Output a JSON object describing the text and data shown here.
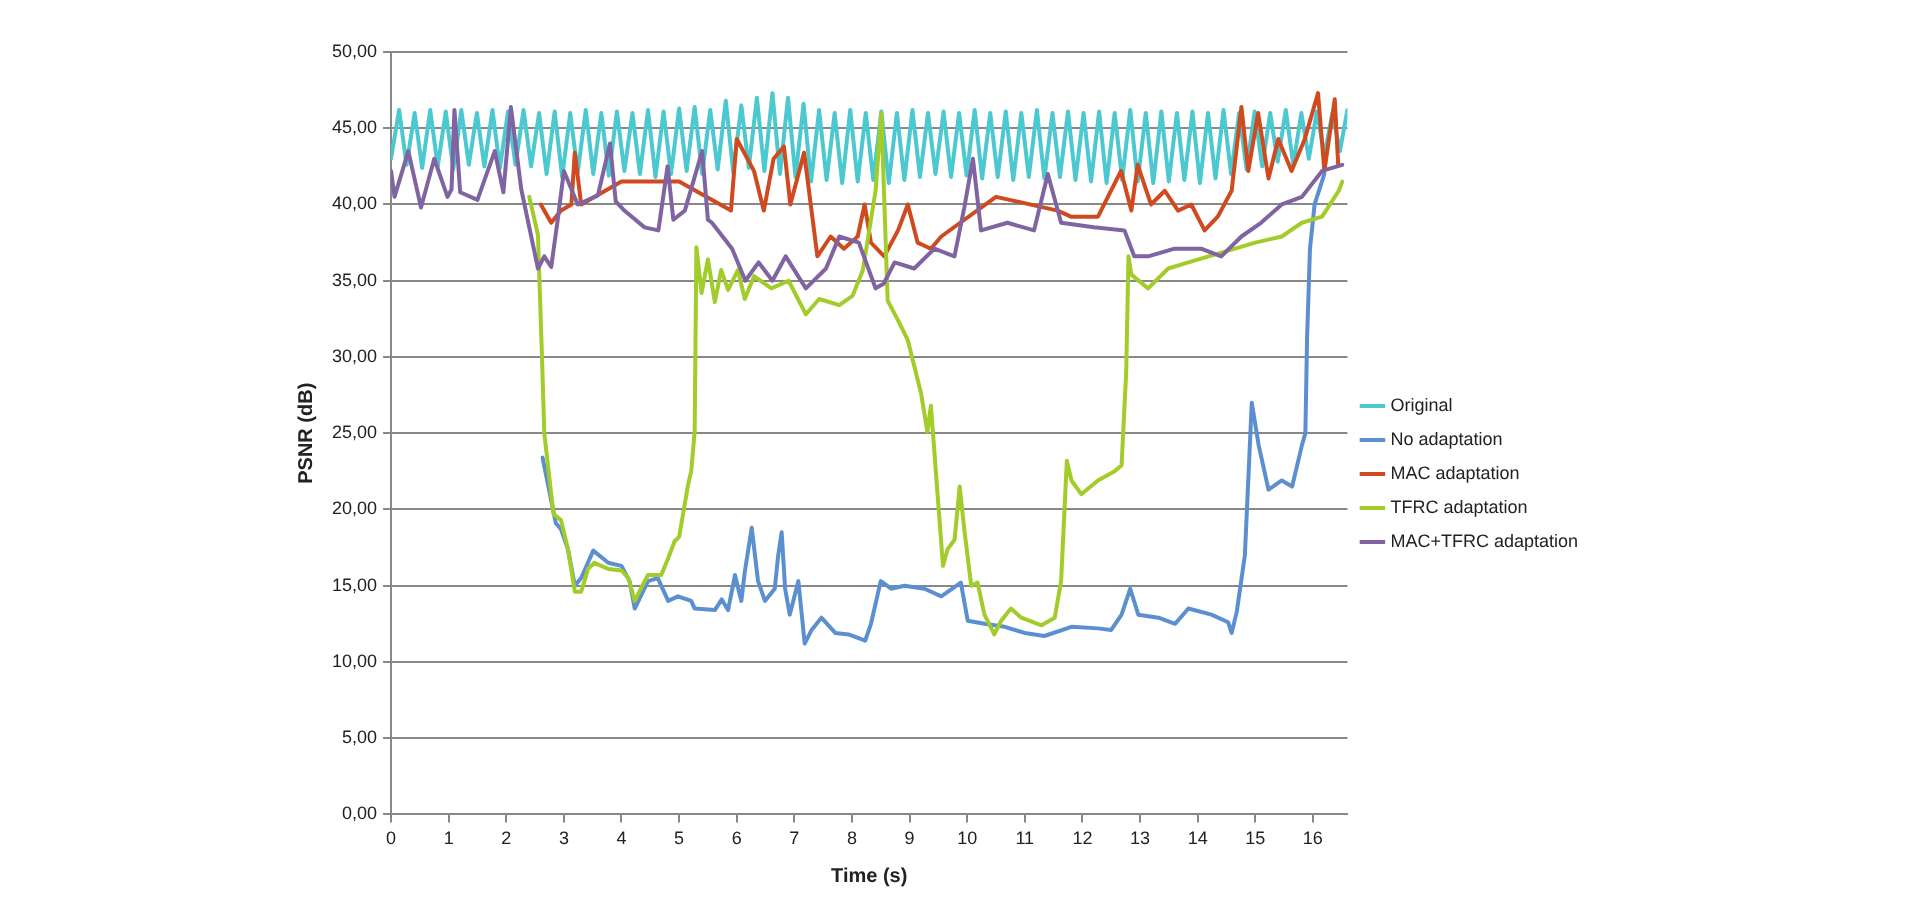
{
  "chart_data": {
    "type": "line",
    "xlabel": "Time (s)",
    "ylabel": "PSNR (dB)",
    "xlim": [
      0,
      16.6
    ],
    "ylim": [
      0,
      50
    ],
    "xticks": [
      0,
      1,
      2,
      3,
      4,
      5,
      6,
      7,
      8,
      9,
      10,
      11,
      12,
      13,
      14,
      15,
      16
    ],
    "yticks": [
      {
        "value": 0,
        "label": "0,00"
      },
      {
        "value": 5,
        "label": "5,00"
      },
      {
        "value": 10,
        "label": "10,00"
      },
      {
        "value": 15,
        "label": "15,00"
      },
      {
        "value": 20,
        "label": "20,00"
      },
      {
        "value": 25,
        "label": "25,00"
      },
      {
        "value": 30,
        "label": "30,00"
      },
      {
        "value": 35,
        "label": "35,00"
      },
      {
        "value": 40,
        "label": "40,00"
      },
      {
        "value": 45,
        "label": "45,00"
      },
      {
        "value": 50,
        "label": "50,00"
      }
    ],
    "grid": "y",
    "legend": "right",
    "marker": "none",
    "line_style": "solid",
    "series": [
      {
        "name": "Original",
        "color": "#4bc8d0",
        "x": [
          0,
          0.14,
          0.27,
          0.41,
          0.54,
          0.68,
          0.81,
          0.95,
          1.08,
          1.22,
          1.35,
          1.49,
          1.62,
          1.76,
          1.89,
          2.03,
          2.16,
          2.3,
          2.43,
          2.57,
          2.7,
          2.84,
          2.97,
          3.11,
          3.24,
          3.38,
          3.51,
          3.65,
          3.78,
          3.92,
          4.05,
          4.19,
          4.32,
          4.46,
          4.59,
          4.73,
          4.86,
          5,
          5.13,
          5.27,
          5.4,
          5.54,
          5.67,
          5.81,
          5.94,
          6.08,
          6.21,
          6.35,
          6.48,
          6.62,
          6.75,
          6.89,
          7.02,
          7.16,
          7.29,
          7.43,
          7.56,
          7.7,
          7.83,
          7.97,
          8.1,
          8.24,
          8.37,
          8.51,
          8.64,
          8.78,
          8.91,
          9.05,
          9.18,
          9.32,
          9.45,
          9.59,
          9.72,
          9.86,
          9.99,
          10.13,
          10.26,
          10.4,
          10.53,
          10.67,
          10.8,
          10.94,
          11.07,
          11.21,
          11.34,
          11.48,
          11.61,
          11.75,
          11.88,
          12.02,
          12.15,
          12.29,
          12.42,
          12.56,
          12.69,
          12.83,
          12.96,
          13.1,
          13.23,
          13.37,
          13.5,
          13.64,
          13.77,
          13.91,
          14.04,
          14.18,
          14.31,
          14.45,
          14.58,
          14.72,
          14.85,
          14.99,
          15.12,
          15.26,
          15.39,
          15.53,
          15.66,
          15.8,
          15.93,
          16.07,
          16.2,
          16.34,
          16.47,
          16.6
        ],
        "values": [
          43,
          46.2,
          42.6,
          46,
          42.4,
          46.2,
          42.5,
          46.1,
          42.3,
          46.2,
          42.6,
          46,
          42.5,
          46.2,
          42.4,
          46.1,
          42.6,
          46.2,
          42.5,
          46,
          42,
          46.1,
          41.8,
          46,
          42.1,
          46.2,
          42,
          46,
          41.9,
          46.1,
          42.2,
          46,
          42,
          46.2,
          41.8,
          46.1,
          42,
          46.3,
          42.2,
          46.4,
          42,
          46.2,
          42.3,
          46.8,
          42.1,
          46.5,
          42.4,
          47,
          42.2,
          47.3,
          42,
          47,
          41.8,
          46.6,
          41.5,
          46.2,
          41.6,
          46,
          41.4,
          46.2,
          41.5,
          46,
          41.6,
          46.1,
          41.4,
          46,
          41.6,
          46.2,
          41.8,
          46,
          42,
          46.1,
          41.8,
          46,
          41.9,
          46.2,
          41.7,
          46,
          41.8,
          46.1,
          41.6,
          46,
          41.8,
          46.2,
          41.7,
          46,
          41.8,
          46.1,
          41.6,
          46,
          41.5,
          46.1,
          41.4,
          46,
          41.6,
          46.2,
          41.5,
          46,
          41.4,
          46.1,
          41.5,
          46,
          41.6,
          46.1,
          41.4,
          46,
          41.7,
          46.2,
          42,
          46,
          42.3,
          46.1,
          42.5,
          46,
          42.8,
          46.2,
          42.6,
          46,
          43,
          46.1,
          43.2,
          46,
          43.5,
          46.2
        ]
      },
      {
        "name": "No adaptation",
        "color": "#5b8fd0",
        "x": [
          2.63,
          2.86,
          2.95,
          3.07,
          3.19,
          3.3,
          3.51,
          3.77,
          4,
          4.14,
          4.23,
          4.46,
          4.63,
          4.81,
          4.98,
          5.21,
          5.27,
          5.62,
          5.74,
          5.85,
          5.97,
          6.08,
          6.14,
          6.26,
          6.37,
          6.49,
          6.66,
          6.72,
          6.78,
          6.84,
          6.92,
          7.07,
          7.18,
          7.3,
          7.47,
          7.71,
          7.94,
          8.23,
          8.33,
          8.5,
          8.68,
          8.91,
          9.26,
          9.55,
          9.89,
          10.01,
          10.3,
          10.65,
          11,
          11.34,
          11.81,
          12.27,
          12.5,
          12.68,
          12.83,
          12.97,
          13.32,
          13.61,
          13.84,
          14.24,
          14.53,
          14.59,
          14.68,
          14.82,
          14.94,
          15.06,
          15.23,
          15.46,
          15.64,
          15.81,
          15.87,
          15.9,
          15.95,
          16.03,
          16.2
        ],
        "values": [
          23.4,
          19.1,
          18.7,
          17.4,
          15,
          15.5,
          17.3,
          16.5,
          16.3,
          15.3,
          13.5,
          15.3,
          15.5,
          14,
          14.3,
          14,
          13.5,
          13.4,
          14.1,
          13.4,
          15.7,
          14,
          15.9,
          18.8,
          15.3,
          14,
          14.8,
          17,
          18.5,
          14.8,
          13.1,
          15.3,
          11.2,
          12.1,
          12.9,
          11.9,
          11.8,
          11.4,
          12.5,
          15.3,
          14.8,
          15,
          14.8,
          14.3,
          15.2,
          12.7,
          12.5,
          12.3,
          11.9,
          11.7,
          12.3,
          12.2,
          12.1,
          13.1,
          14.8,
          13.1,
          12.9,
          12.5,
          13.5,
          13.1,
          12.6,
          11.9,
          13.3,
          17,
          27,
          24.2,
          21.3,
          21.9,
          21.5,
          24.2,
          25,
          31.3,
          37.1,
          40,
          42
        ]
      },
      {
        "name": "MAC adaptation",
        "color": "#d04a1f",
        "x": [
          2.6,
          2.78,
          2.95,
          3.13,
          3.19,
          3.3,
          4,
          5,
          5.9,
          6,
          6.3,
          6.47,
          6.64,
          6.82,
          6.93,
          7.17,
          7.4,
          7.63,
          7.86,
          8.1,
          8.22,
          8.33,
          8.56,
          8.8,
          8.97,
          9.14,
          9.37,
          9.55,
          10.5,
          11.57,
          11.8,
          12.27,
          12.67,
          12.85,
          12.96,
          13.19,
          13.43,
          13.66,
          13.89,
          14.12,
          14.35,
          14.59,
          14.76,
          14.88,
          15.05,
          15.23,
          15.4,
          15.63,
          15.86,
          16.09,
          16.2,
          16.38,
          16.44
        ],
        "values": [
          40,
          38.8,
          39.6,
          40,
          43.4,
          40,
          41.5,
          41.5,
          39.6,
          44.3,
          42.2,
          39.6,
          43,
          43.8,
          40,
          43.4,
          36.6,
          37.9,
          37.1,
          37.9,
          40,
          37.5,
          36.6,
          38.3,
          40,
          37.5,
          37.1,
          37.9,
          40.5,
          39.6,
          39.2,
          39.2,
          42.2,
          39.6,
          42.6,
          40,
          40.9,
          39.6,
          40,
          38.3,
          39.2,
          40.9,
          46.4,
          42.2,
          46,
          41.7,
          44.3,
          42.2,
          44.3,
          47.3,
          42.2,
          46.9,
          42.6
        ]
      },
      {
        "name": "TFRC adaptation",
        "color": "#a2cc2a",
        "x": [
          2.4,
          2.55,
          2.62,
          2.66,
          2.75,
          2.82,
          2.95,
          3.07,
          3.19,
          3.3,
          3.42,
          3.53,
          3.77,
          4,
          4.12,
          4.23,
          4.35,
          4.46,
          4.69,
          4.81,
          4.92,
          5,
          5.16,
          5.21,
          5.27,
          5.3,
          5.39,
          5.5,
          5.62,
          5.73,
          5.85,
          6.02,
          6.14,
          6.3,
          6.6,
          6.9,
          7.2,
          7.43,
          7.78,
          8.01,
          8.19,
          8.41,
          8.51,
          8.62,
          8.8,
          8.97,
          9.2,
          9.31,
          9.37,
          9.49,
          9.58,
          9.66,
          9.78,
          9.87,
          9.95,
          10.07,
          10.18,
          10.3,
          10.47,
          10.59,
          10.76,
          10.94,
          11.29,
          11.52,
          11.63,
          11.73,
          11.81,
          11.98,
          12.27,
          12.56,
          12.68,
          12.76,
          12.8,
          12.85,
          13.14,
          13.49,
          13.84,
          14.19,
          14.65,
          15,
          15.46,
          15.81,
          16.16,
          16.45,
          16.51
        ],
        "values": [
          40.5,
          38,
          30,
          25,
          22,
          19.7,
          19.3,
          17.4,
          14.6,
          14.6,
          16.1,
          16.5,
          16.1,
          16,
          15.5,
          14,
          14.9,
          15.7,
          15.7,
          16.8,
          17.9,
          18.2,
          21.7,
          22.5,
          25.1,
          37.2,
          34.2,
          36.4,
          33.6,
          35.7,
          34.4,
          35.7,
          33.8,
          35.3,
          34.5,
          35,
          32.8,
          33.8,
          33.4,
          34,
          35.7,
          40.9,
          46,
          33.7,
          32.4,
          31.1,
          27.6,
          25.1,
          26.8,
          20.8,
          16.3,
          17.4,
          18,
          21.5,
          18.7,
          15,
          15.2,
          13.1,
          11.8,
          12.7,
          13.5,
          12.9,
          12.4,
          12.9,
          15.3,
          23.2,
          21.9,
          21,
          21.9,
          22.5,
          22.9,
          29,
          36.6,
          35.4,
          34.5,
          35.8,
          36.2,
          36.6,
          37.1,
          37.5,
          37.9,
          38.8,
          39.2,
          40.9,
          41.5
        ]
      },
      {
        "name": "MAC+TFRC adaptation",
        "color": "#8064a2",
        "x": [
          0,
          0.06,
          0.3,
          0.52,
          0.75,
          0.98,
          1.05,
          1.1,
          1.2,
          1.5,
          1.8,
          1.95,
          2.08,
          2.26,
          2.55,
          2.66,
          2.78,
          2.9,
          3,
          3.24,
          3.59,
          3.8,
          3.9,
          4.05,
          4.4,
          4.64,
          4.8,
          4.9,
          5.1,
          5.4,
          5.5,
          5.57,
          5.92,
          6.15,
          6.38,
          6.62,
          6.85,
          7.2,
          7.55,
          7.78,
          8.12,
          8.41,
          8.55,
          8.74,
          9.08,
          9.43,
          9.78,
          9.95,
          10.1,
          10.24,
          10.7,
          11.16,
          11.4,
          11.63,
          12.2,
          12.73,
          12.9,
          13.14,
          13.6,
          14.06,
          14.41,
          14.76,
          15.1,
          15.46,
          15.81,
          16.16,
          16.51
        ],
        "values": [
          42.2,
          40.5,
          43.5,
          39.8,
          43,
          40.5,
          41,
          46.2,
          40.8,
          40.3,
          43.5,
          40.8,
          46.4,
          41,
          35.8,
          36.6,
          35.9,
          39.2,
          42.2,
          40,
          40.6,
          44,
          40.2,
          39.6,
          38.5,
          38.3,
          42.5,
          39,
          39.6,
          43.5,
          39,
          38.8,
          37.1,
          35,
          36.2,
          35,
          36.6,
          34.5,
          35.8,
          37.9,
          37.5,
          34.5,
          34.8,
          36.2,
          35.8,
          37.1,
          36.6,
          39.8,
          43,
          38.3,
          38.8,
          38.3,
          42,
          38.8,
          38.5,
          38.3,
          36.6,
          36.6,
          37.1,
          37.1,
          36.6,
          37.9,
          38.8,
          40,
          40.5,
          42.2,
          42.6
        ]
      }
    ]
  }
}
